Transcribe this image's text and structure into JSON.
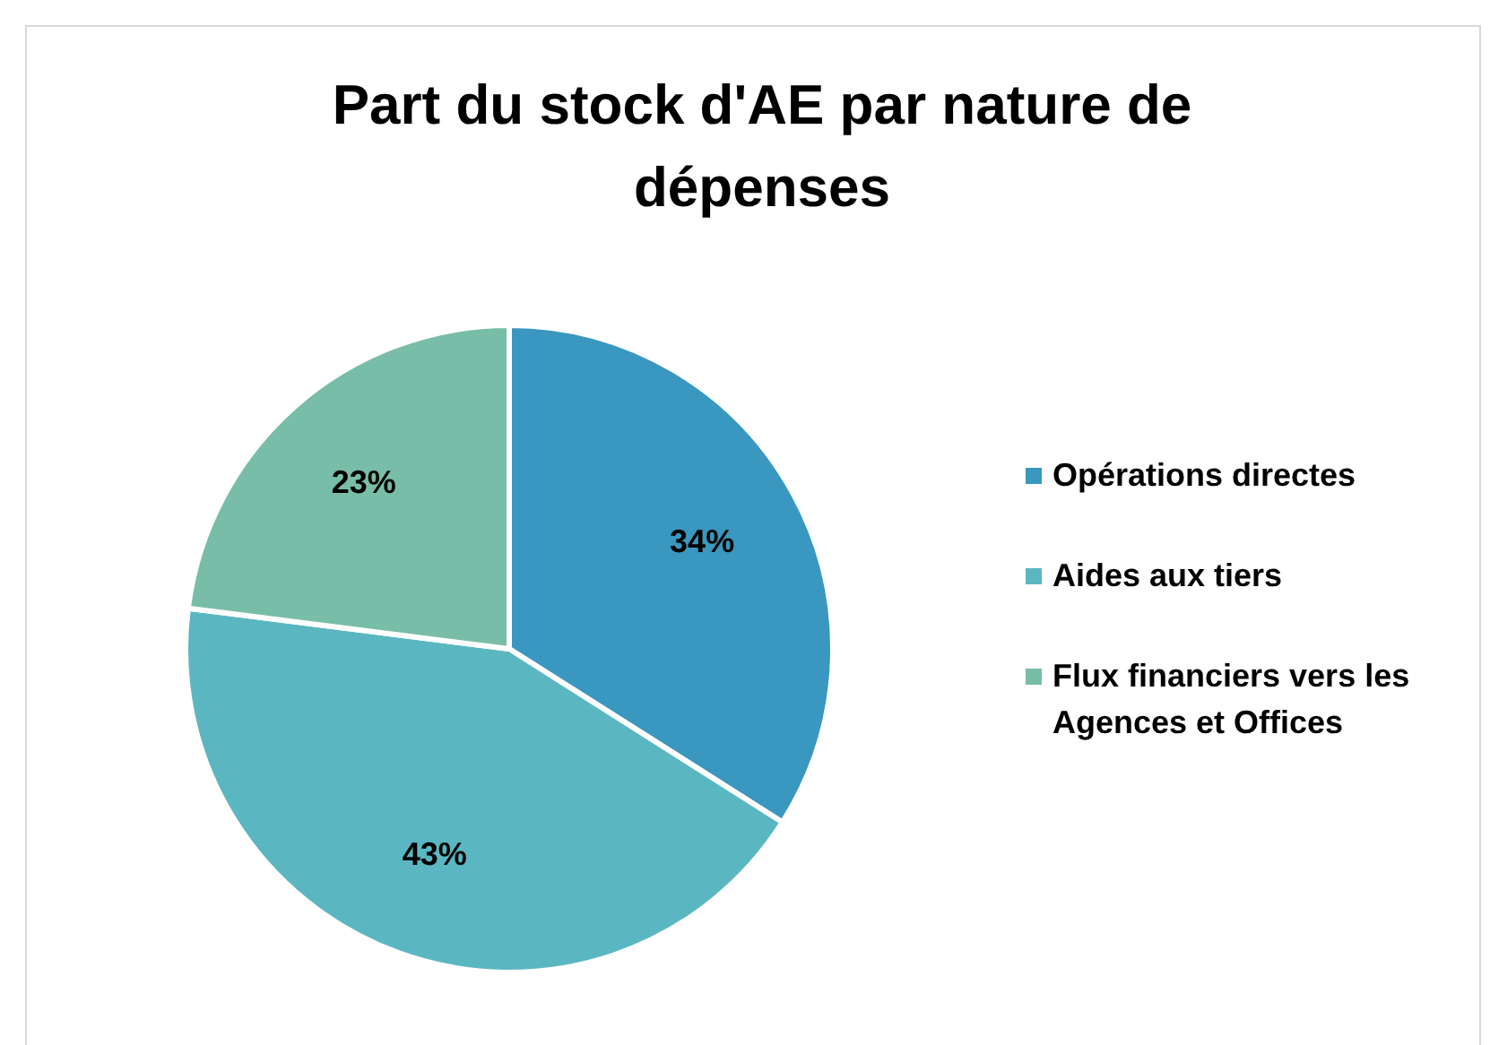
{
  "chart_data": {
    "type": "pie",
    "title": "Part du stock d'AE par nature de dépenses",
    "categories": [
      "Opérations directes",
      "Aides aux tiers",
      "Flux financiers vers les Agences et Offices"
    ],
    "values": [
      34,
      43,
      23
    ],
    "colors": [
      "#3a97bf",
      "#5ab7c1",
      "#78bda7"
    ],
    "value_labels": [
      "34%",
      "43%",
      "23%"
    ],
    "legend": "right"
  }
}
